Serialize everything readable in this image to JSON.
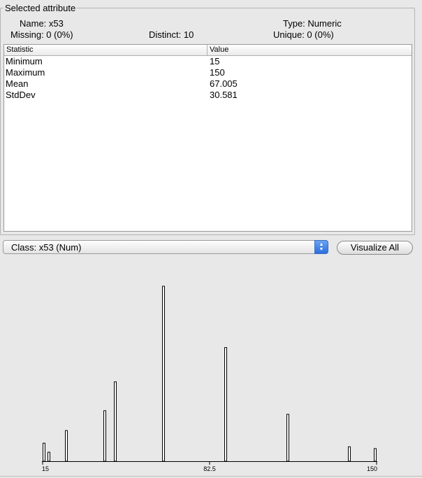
{
  "selected_attribute": {
    "title": "Selected attribute",
    "name": "Name: x53",
    "type": "Type: Numeric",
    "missing": "Missing: 0 (0%)",
    "distinct": "Distinct: 10",
    "unique": "Unique: 0 (0%)"
  },
  "stats_table": {
    "headers": [
      "Statistic",
      "Value"
    ],
    "rows": [
      {
        "stat": "Minimum",
        "value": "15"
      },
      {
        "stat": "Maximum",
        "value": "150"
      },
      {
        "stat": "Mean",
        "value": "67.005"
      },
      {
        "stat": "StdDev",
        "value": "30.581"
      }
    ]
  },
  "class_select": {
    "value": "Class: x53 (Num)"
  },
  "visualize_button": {
    "label": "Visualize All"
  },
  "chart_data": {
    "type": "bar",
    "xlim": [
      15,
      150
    ],
    "tick_labels": [
      "15",
      "82.5",
      "150"
    ],
    "bars": [
      {
        "x": 15.5,
        "count": 10
      },
      {
        "x": 17.5,
        "count": 5
      },
      {
        "x": 24.5,
        "count": 17
      },
      {
        "x": 40,
        "count": 28
      },
      {
        "x": 44.5,
        "count": 44
      },
      {
        "x": 64,
        "count": 97
      },
      {
        "x": 89,
        "count": 63
      },
      {
        "x": 114,
        "count": 26
      },
      {
        "x": 139,
        "count": 8
      },
      {
        "x": 149.5,
        "count": 7
      }
    ],
    "ylim": [
      0,
      97
    ],
    "colors": {
      "bar_fill": "#ffffff",
      "bar_stroke": "#000000",
      "axis": "#000000"
    }
  }
}
